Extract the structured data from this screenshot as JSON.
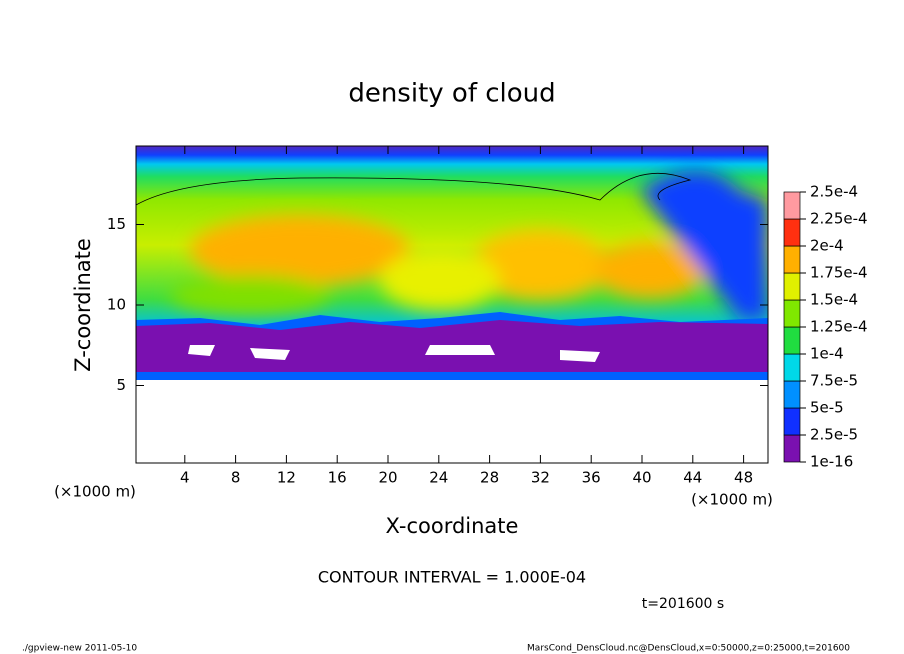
{
  "chart_data": {
    "type": "contour",
    "title": "density of cloud",
    "x_label": "X-coordinate",
    "y_label": "Z-coordinate",
    "x_unit": "(×1000 m)",
    "y_unit": "(×1000 m)",
    "xlim": [
      0,
      50
    ],
    "ylim": [
      0,
      20
    ],
    "xticks": [
      4,
      8,
      12,
      16,
      20,
      24,
      28,
      32,
      36,
      40,
      44,
      48
    ],
    "yticks": [
      5,
      10,
      15
    ],
    "colorbar": {
      "levels": [
        {
          "value": 1e-16,
          "label": "1e-16"
        },
        {
          "value": 2.5e-05,
          "label": "2.5e-5"
        },
        {
          "value": 5e-05,
          "label": "5e-5"
        },
        {
          "value": 7.5e-05,
          "label": "7.5e-5"
        },
        {
          "value": 0.0001,
          "label": "1e-4"
        },
        {
          "value": 0.000125,
          "label": "1.25e-4"
        },
        {
          "value": 0.00015,
          "label": "1.5e-4"
        },
        {
          "value": 0.000175,
          "label": "1.75e-4"
        },
        {
          "value": 0.0002,
          "label": "2e-4"
        },
        {
          "value": 0.000225,
          "label": "2.25e-4"
        },
        {
          "value": 0.00025,
          "label": "2.5e-4"
        }
      ],
      "colors": [
        "#7a10b0",
        "#1030ff",
        "#0090ff",
        "#00d8e8",
        "#20dd40",
        "#80e800",
        "#e0f000",
        "#ffb000",
        "#ff3010",
        "#ff9aa0"
      ]
    },
    "contour_interval": "CONTOUR INTERVAL = 1.000E-04",
    "time_label": "t=201600 s",
    "footer_left": "./gpview-new  2011-05-10",
    "footer_right": "MarsCond_DensCloud.nc@DensCloud,x=0:50000,z=0:25000,t=201600"
  }
}
